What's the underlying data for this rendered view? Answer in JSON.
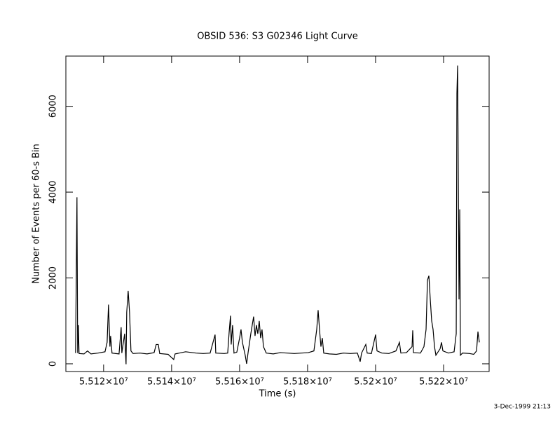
{
  "chart_data": {
    "type": "line",
    "title": "OBSID 536: S3 G02346 Light Curve",
    "x_label": "Time (s)",
    "y_label": "Number of Events per 60-s Bin",
    "footer": "3-Dec-1999 21:13",
    "color": "#000000",
    "xlim": [
      55108900,
      55233400
    ],
    "ylim": [
      -180,
      7170
    ],
    "xticks": [
      {
        "value": 55120000,
        "label": "5.512×10⁷"
      },
      {
        "value": 55140000,
        "label": "5.514×10⁷"
      },
      {
        "value": 55160000,
        "label": "5.516×10⁷"
      },
      {
        "value": 55180000,
        "label": "5.518×10⁷"
      },
      {
        "value": 55200000,
        "label": "5.52×10⁷"
      },
      {
        "value": 55220000,
        "label": "5.522×10⁷"
      }
    ],
    "yticks": [
      0,
      2000,
      4000,
      6000
    ],
    "x": [
      55111750,
      55112160,
      55112370,
      55112580,
      55112780,
      55114230,
      55115260,
      55116290,
      55118350,
      55120410,
      55121030,
      55121440,
      55121860,
      55122060,
      55122470,
      55124540,
      55125160,
      55125360,
      55126190,
      55126600,
      55126800,
      55127220,
      55127630,
      55128040,
      55128660,
      55130720,
      55132780,
      55134850,
      55135470,
      55136080,
      55136500,
      55138970,
      55140620,
      55141030,
      55144130,
      55147220,
      55149280,
      55151340,
      55152790,
      55152990,
      55155470,
      55156500,
      55156910,
      55157320,
      55157530,
      55157940,
      55158350,
      55159180,
      55160000,
      55160420,
      55160830,
      55161650,
      55162070,
      55162480,
      55163300,
      55163710,
      55164130,
      55164540,
      55164950,
      55165360,
      55165780,
      55166190,
      55166600,
      55167010,
      55167840,
      55169900,
      55171960,
      55174020,
      55176090,
      55178150,
      55180210,
      55181860,
      55182690,
      55183100,
      55183510,
      55183920,
      55184330,
      55184750,
      55186400,
      55188460,
      55190520,
      55192580,
      55194640,
      55195470,
      55195880,
      55197120,
      55197530,
      55198770,
      55200010,
      55200420,
      55201860,
      55203920,
      55205990,
      55207020,
      55207430,
      55209080,
      55210730,
      55210930,
      55211140,
      55213200,
      55214230,
      55214850,
      55215260,
      55215680,
      55216090,
      55216500,
      55216910,
      55217330,
      55217740,
      55218980,
      55219390,
      55219800,
      55221450,
      55223100,
      55223720,
      55223920,
      55224130,
      55224340,
      55224540,
      55224750,
      55224960,
      55225570,
      55227640,
      55228870,
      55229700,
      55230110,
      55230520
    ],
    "values": [
      250,
      3880,
      250,
      900,
      240,
      230,
      300,
      230,
      250,
      280,
      500,
      1380,
      400,
      650,
      250,
      230,
      850,
      250,
      700,
      -10,
      1200,
      1700,
      1200,
      300,
      240,
      250,
      230,
      260,
      450,
      450,
      240,
      220,
      100,
      230,
      280,
      250,
      240,
      250,
      680,
      250,
      240,
      250,
      720,
      1120,
      450,
      900,
      250,
      270,
      600,
      800,
      500,
      200,
      0,
      250,
      700,
      900,
      1100,
      650,
      900,
      700,
      1000,
      600,
      800,
      400,
      250,
      230,
      260,
      250,
      240,
      250,
      260,
      300,
      800,
      1250,
      800,
      400,
      600,
      250,
      230,
      220,
      250,
      240,
      250,
      50,
      250,
      450,
      250,
      240,
      680,
      300,
      250,
      240,
      300,
      500,
      250,
      260,
      400,
      780,
      260,
      250,
      400,
      800,
      1950,
      2050,
      1500,
      1000,
      800,
      400,
      200,
      350,
      500,
      300,
      250,
      280,
      700,
      6300,
      6950,
      4300,
      1500,
      3600,
      200,
      250,
      240,
      220,
      300,
      750,
      500
    ]
  }
}
